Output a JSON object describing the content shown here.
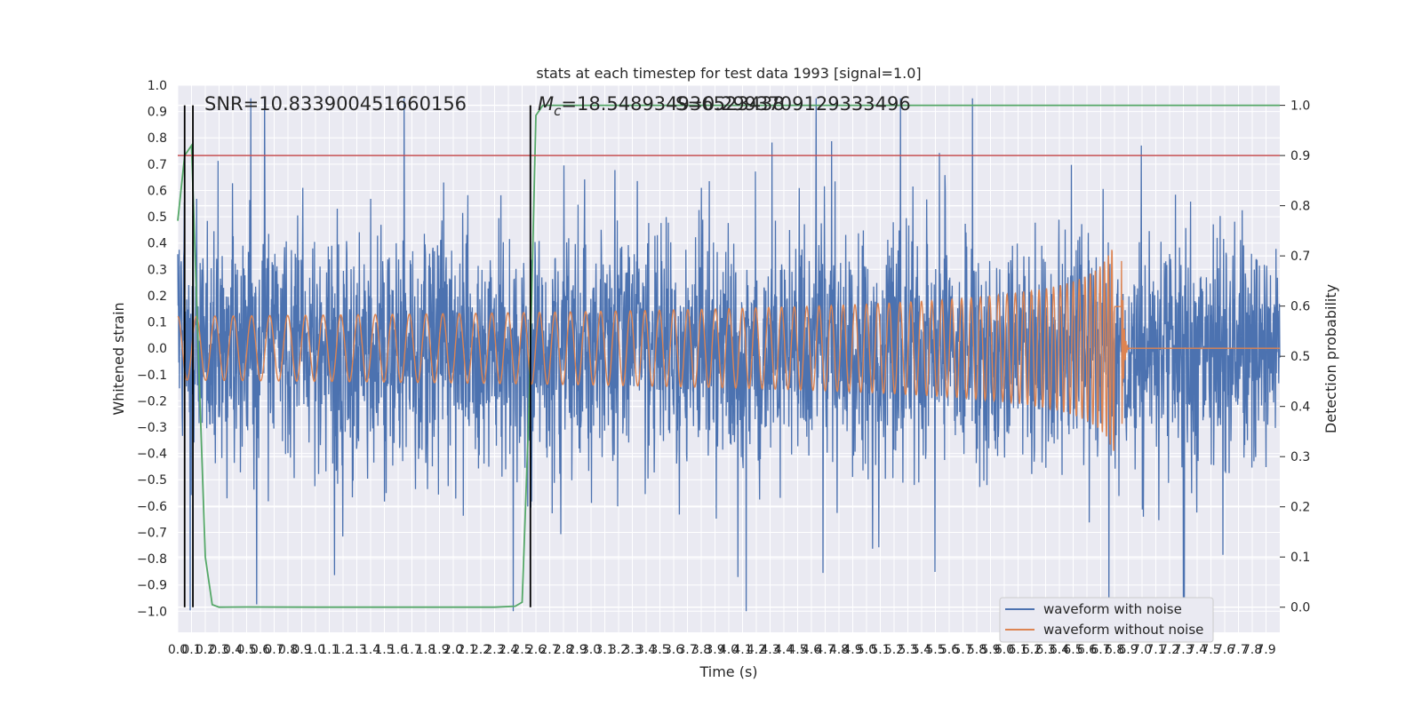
{
  "chart_data": {
    "type": "line",
    "title": "stats at each timestep for test data 1993 [signal=1.0]",
    "xlabel": "Time (s)",
    "ylabel_left": "Whitened strain",
    "ylabel_right": "Detection probability",
    "xlim": [
      0.0,
      8.0
    ],
    "ylim_left": [
      -1.08,
      1.0
    ],
    "ylim_right": [
      -0.05,
      1.04
    ],
    "x_ticks": [
      "0.0",
      "0.1",
      "0.2",
      "0.3",
      "0.4",
      "0.5",
      "0.6",
      "0.7",
      "0.8",
      "0.9",
      "1.0",
      "1.1",
      "1.2",
      "1.3",
      "1.4",
      "1.5",
      "1.6",
      "1.7",
      "1.8",
      "1.9",
      "2.0",
      "2.1",
      "2.2",
      "2.3",
      "2.4",
      "2.5",
      "2.6",
      "2.7",
      "2.8",
      "2.9",
      "3.0",
      "3.1",
      "3.2",
      "3.3",
      "3.4",
      "3.5",
      "3.6",
      "3.7",
      "3.8",
      "3.9",
      "4.0",
      "4.1",
      "4.2",
      "4.3",
      "4.4",
      "4.5",
      "4.6",
      "4.7",
      "4.8",
      "4.9",
      "5.0",
      "5.1",
      "5.2",
      "5.3",
      "5.4",
      "5.5",
      "5.6",
      "5.7",
      "5.8",
      "5.9",
      "6.0",
      "6.1",
      "6.2",
      "6.3",
      "6.4",
      "6.5",
      "6.6",
      "6.7",
      "6.8",
      "6.9",
      "7.0",
      "7.1",
      "7.2",
      "7.3",
      "7.4",
      "7.5",
      "7.6",
      "7.7",
      "7.8",
      "7.9"
    ],
    "y_ticks_left": [
      "1.0",
      "0.9",
      "0.8",
      "0.7",
      "0.6",
      "0.5",
      "0.4",
      "0.3",
      "0.2",
      "0.1",
      "0.0",
      "−0.1",
      "−0.2",
      "−0.3",
      "−0.4",
      "−0.5",
      "−0.6",
      "−0.7",
      "−0.8",
      "−0.9",
      "−1.0"
    ],
    "y_ticks_right": [
      "1.0",
      "0.9",
      "0.8",
      "0.7",
      "0.6",
      "0.5",
      "0.4",
      "0.3",
      "0.2",
      "0.1",
      "0.0"
    ],
    "annotations": {
      "snr": "SNR=10.833900451660156",
      "mc": "M_c=18.548934936523438",
      "overlap": "S=0.2993709129333496"
    },
    "series": [
      {
        "name": "waveform with noise",
        "color": "#4c72b0",
        "kind": "noise",
        "amplitude_range": [
          -1.0,
          0.95
        ]
      },
      {
        "name": "waveform without noise",
        "color": "#dd8452",
        "kind": "chirp",
        "merger_time": 6.85,
        "peak_amplitude": 0.46
      },
      {
        "name": "detection probability",
        "color": "#55a868",
        "axis": "right",
        "x": [
          0.0,
          0.05,
          0.1,
          0.15,
          0.2,
          0.25,
          0.3,
          0.5,
          1.0,
          1.5,
          2.0,
          2.3,
          2.45,
          2.5,
          2.55,
          2.6,
          2.65,
          8.0
        ],
        "y": [
          0.77,
          0.9,
          0.92,
          0.5,
          0.1,
          0.005,
          0.0,
          0.0005,
          0.0,
          0.0,
          0.0,
          0.0,
          0.002,
          0.01,
          0.4,
          0.98,
          1.0,
          1.0
        ]
      }
    ],
    "threshold": {
      "value": 0.9,
      "axis": "right",
      "color": "#c44e52"
    },
    "vertical_lines": [
      0.05,
      0.11,
      2.56
    ]
  }
}
